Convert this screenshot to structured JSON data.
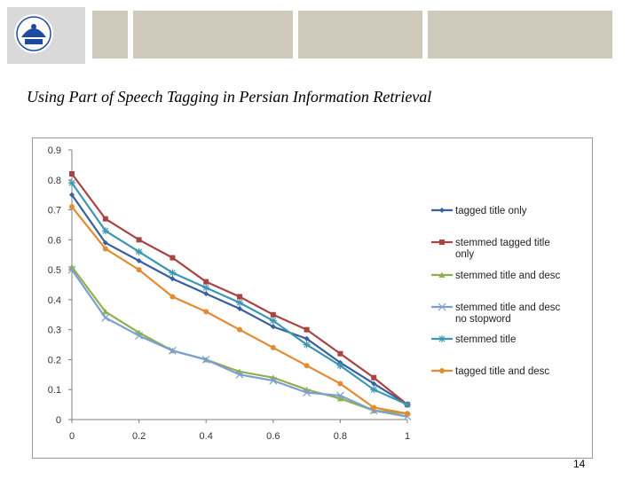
{
  "slide": {
    "title": "Using Part of Speech Tagging in Persian Information Retrieval",
    "page_number": "14"
  },
  "chart_data": {
    "type": "line",
    "x": [
      0,
      0.1,
      0.2,
      0.3,
      0.4,
      0.5,
      0.6,
      0.7,
      0.8,
      0.9,
      1
    ],
    "xticks": [
      "0",
      "0.2",
      "0.4",
      "0.6",
      "0.8",
      "1"
    ],
    "yticks": [
      "0",
      "0.1",
      "0.2",
      "0.3",
      "0.4",
      "0.5",
      "0.6",
      "0.7",
      "0.8",
      "0.9"
    ],
    "xlim": [
      0,
      1
    ],
    "ylim": [
      0,
      0.9
    ],
    "legend_position": "right",
    "series": [
      {
        "name": "tagged title only",
        "color": "#3a5f9e",
        "marker": "diamond",
        "values": [
          0.75,
          0.59,
          0.53,
          0.47,
          0.42,
          0.37,
          0.31,
          0.27,
          0.19,
          0.12,
          0.05
        ]
      },
      {
        "name": "stemmed tagged title only",
        "color": "#a84442",
        "marker": "square",
        "values": [
          0.82,
          0.67,
          0.6,
          0.54,
          0.46,
          0.41,
          0.35,
          0.3,
          0.22,
          0.14,
          0.05
        ]
      },
      {
        "name": "stemmed title and desc",
        "color": "#8fb04f",
        "marker": "triangle",
        "values": [
          0.51,
          0.36,
          0.29,
          0.23,
          0.2,
          0.16,
          0.14,
          0.1,
          0.07,
          0.03,
          0.02
        ]
      },
      {
        "name": "stemmed title and desc no stopword",
        "color": "#7c9fcf",
        "marker": "x",
        "values": [
          0.5,
          0.34,
          0.28,
          0.23,
          0.2,
          0.15,
          0.13,
          0.09,
          0.08,
          0.03,
          0.01
        ]
      },
      {
        "name": "stemmed title",
        "color": "#3d97b2",
        "marker": "star",
        "values": [
          0.79,
          0.63,
          0.56,
          0.49,
          0.44,
          0.39,
          0.33,
          0.25,
          0.18,
          0.1,
          0.05
        ]
      },
      {
        "name": "tagged title and desc",
        "color": "#e38b33",
        "marker": "circle",
        "values": [
          0.71,
          0.57,
          0.5,
          0.41,
          0.36,
          0.3,
          0.24,
          0.18,
          0.12,
          0.04,
          0.02
        ]
      }
    ]
  }
}
